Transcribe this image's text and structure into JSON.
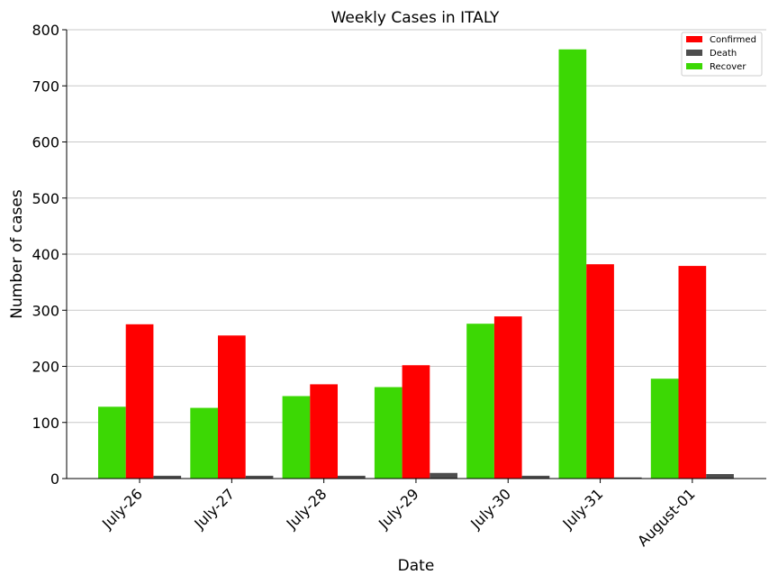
{
  "chart_data": {
    "type": "bar",
    "title": "Weekly Cases in ITALY",
    "xlabel": "Date",
    "ylabel": "Number of cases",
    "categories": [
      "July-26",
      "July-27",
      "July-28",
      "July-29",
      "July-30",
      "July-31",
      "August-01"
    ],
    "series": [
      {
        "name": "Recover",
        "color": "#3cd804",
        "values": [
          128,
          126,
          147,
          163,
          276,
          765,
          178
        ]
      },
      {
        "name": "Confirmed",
        "color": "#ff0000",
        "values": [
          275,
          255,
          168,
          202,
          289,
          382,
          379
        ]
      },
      {
        "name": "Death",
        "color": "#4d4d4d",
        "values": [
          5,
          5,
          5,
          10,
          5,
          2,
          8
        ]
      }
    ],
    "legend_order": [
      "Confirmed",
      "Death",
      "Recover"
    ],
    "legend_position": "top-right",
    "ylim": [
      0,
      800
    ],
    "yticks": [
      0,
      100,
      200,
      300,
      400,
      500,
      600,
      700,
      800
    ],
    "grid": "horizontal"
  }
}
